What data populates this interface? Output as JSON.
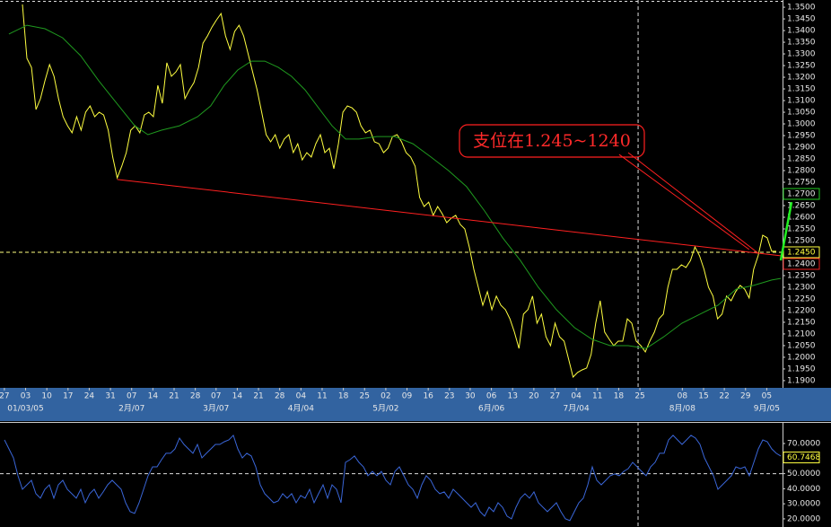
{
  "chart_data": [
    {
      "type": "line",
      "xlim": [
        -4.97,
        168.4
      ],
      "ylim": [
        1.1869,
        1.3531
      ],
      "yticks": [
        {
          "value": 1.35,
          "label": "1.3500"
        },
        {
          "value": 1.345,
          "label": "1.3450"
        },
        {
          "value": 1.34,
          "label": "1.3400"
        },
        {
          "value": 1.335,
          "label": "1.3350"
        },
        {
          "value": 1.33,
          "label": "1.3300"
        },
        {
          "value": 1.325,
          "label": "1.3250"
        },
        {
          "value": 1.32,
          "label": "1.3200"
        },
        {
          "value": 1.315,
          "label": "1.3150"
        },
        {
          "value": 1.31,
          "label": "1.3100"
        },
        {
          "value": 1.305,
          "label": "1.3050"
        },
        {
          "value": 1.3,
          "label": "1.3000"
        },
        {
          "value": 1.295,
          "label": "1.2950"
        },
        {
          "value": 1.29,
          "label": "1.2900"
        },
        {
          "value": 1.285,
          "label": "1.2850"
        },
        {
          "value": 1.28,
          "label": "1.2800"
        },
        {
          "value": 1.275,
          "label": "1.2750"
        },
        {
          "value": 1.265,
          "label": "1.2650"
        },
        {
          "value": 1.26,
          "label": "1.2600"
        },
        {
          "value": 1.255,
          "label": "1.2550"
        },
        {
          "value": 1.25,
          "label": "1.2500"
        },
        {
          "value": 1.235,
          "label": "1.2350"
        },
        {
          "value": 1.23,
          "label": "1.2300"
        },
        {
          "value": 1.225,
          "label": "1.2250"
        },
        {
          "value": 1.22,
          "label": "1.2200"
        },
        {
          "value": 1.215,
          "label": "1.2150"
        },
        {
          "value": 1.21,
          "label": "1.2100"
        },
        {
          "value": 1.205,
          "label": "1.2050"
        },
        {
          "value": 1.2,
          "label": "1.2000"
        },
        {
          "value": 1.195,
          "label": "1.1950"
        },
        {
          "value": 1.19,
          "label": "1.1900"
        }
      ],
      "markers": [
        {
          "value": 1.27,
          "label": "1.2700",
          "color": "#22cc22"
        },
        {
          "value": 1.245,
          "label": "1.2450",
          "color": "#ffff40"
        },
        {
          "value": 1.24,
          "label": "1.2400",
          "color": "#ee2020"
        }
      ],
      "xticks": [
        {
          "value": -4.0,
          "label": "27"
        },
        {
          "value": 0.7,
          "label": "03"
        },
        {
          "value": 5.4,
          "label": "10"
        },
        {
          "value": 10.1,
          "label": "17"
        },
        {
          "value": 14.8,
          "label": "24"
        },
        {
          "value": 19.5,
          "label": "31"
        },
        {
          "value": 24.2,
          "label": "07"
        },
        {
          "value": 28.9,
          "label": "14"
        },
        {
          "value": 33.6,
          "label": "21"
        },
        {
          "value": 38.3,
          "label": "28"
        },
        {
          "value": 42.9,
          "label": "07"
        },
        {
          "value": 47.6,
          "label": "14"
        },
        {
          "value": 52.3,
          "label": "21"
        },
        {
          "value": 57.0,
          "label": "28"
        },
        {
          "value": 61.7,
          "label": "04"
        },
        {
          "value": 66.4,
          "label": "11"
        },
        {
          "value": 71.1,
          "label": "18"
        },
        {
          "value": 75.8,
          "label": "25"
        },
        {
          "value": 80.5,
          "label": "02"
        },
        {
          "value": 85.2,
          "label": "09"
        },
        {
          "value": 89.9,
          "label": "16"
        },
        {
          "value": 94.6,
          "label": "23"
        },
        {
          "value": 99.2,
          "label": "30"
        },
        {
          "value": 103.9,
          "label": "06"
        },
        {
          "value": 108.6,
          "label": "13"
        },
        {
          "value": 113.3,
          "label": "20"
        },
        {
          "value": 118.0,
          "label": "27"
        },
        {
          "value": 122.7,
          "label": "04"
        },
        {
          "value": 127.4,
          "label": "11"
        },
        {
          "value": 132.1,
          "label": "18"
        },
        {
          "value": 136.8,
          "label": "25"
        },
        {
          "value": 146.2,
          "label": "08"
        },
        {
          "value": 150.9,
          "label": "15"
        },
        {
          "value": 155.5,
          "label": "22"
        },
        {
          "value": 160.2,
          "label": "29"
        },
        {
          "value": 164.9,
          "label": "05"
        }
      ],
      "month_labels": [
        {
          "value": 0.7,
          "label": "01/03/05"
        },
        {
          "value": 24.2,
          "label": "2月/07"
        },
        {
          "value": 42.9,
          "label": "3月/07"
        },
        {
          "value": 61.7,
          "label": "4月/04"
        },
        {
          "value": 80.5,
          "label": "5月/02"
        },
        {
          "value": 103.9,
          "label": "6月/06"
        },
        {
          "value": 122.7,
          "label": "7月/04"
        },
        {
          "value": 146.2,
          "label": "8月/08"
        },
        {
          "value": 164.9,
          "label": "9月/05"
        }
      ],
      "hline": 1.245,
      "vline": 136.4,
      "annotation": "支位在1.245~1240",
      "lines": [
        {
          "x": [
            21,
            168
          ],
          "y": [
            1.2762,
            1.2435
          ],
          "color": "#ff2020"
        },
        {
          "x": [
            132.2,
            161.0
          ],
          "y": [
            1.2869,
            1.2462
          ],
          "color": "#ff2020"
        },
        {
          "x": [
            134.2,
            163.0
          ],
          "y": [
            1.2877,
            1.2446
          ],
          "color": "#ff2020"
        },
        {
          "x": [
            168,
            170.4
          ],
          "y": [
            1.2415,
            1.2665
          ],
          "color": "#22ee22"
        }
      ],
      "series": [
        {
          "color": "#ffff40",
          "values": [
            1.3512,
            1.3281,
            1.3242,
            1.3062,
            1.3108,
            1.3185,
            1.3254,
            1.3204,
            1.3108,
            1.3031,
            1.2992,
            1.2962,
            1.3031,
            1.2973,
            1.305,
            1.3077,
            1.3031,
            1.305,
            1.3038,
            1.2973,
            1.2858,
            1.2769,
            1.2819,
            1.2877,
            1.2973,
            1.2992,
            1.2962,
            1.3038,
            1.305,
            1.3031,
            1.3165,
            1.3088,
            1.3262,
            1.3204,
            1.3223,
            1.3254,
            1.3108,
            1.3146,
            1.3177,
            1.3242,
            1.3346,
            1.3377,
            1.3415,
            1.3446,
            1.3473,
            1.3377,
            1.3319,
            1.3396,
            1.3423,
            1.3377,
            1.33,
            1.3223,
            1.3146,
            1.305,
            1.2954,
            1.2923,
            1.2954,
            1.2896,
            1.2935,
            1.2954,
            1.2877,
            1.2915,
            1.2846,
            1.2877,
            1.2858,
            1.2915,
            1.2954,
            1.2877,
            1.2896,
            1.2808,
            1.2915,
            1.305,
            1.3077,
            1.3069,
            1.305,
            1.2992,
            1.2962,
            1.2973,
            1.2923,
            1.2915,
            1.2877,
            1.2896,
            1.2946,
            1.2954,
            1.2923,
            1.2877,
            1.2858,
            1.2819,
            1.2685,
            1.2646,
            1.2665,
            1.2608,
            1.2646,
            1.2615,
            1.2577,
            1.2596,
            1.2608,
            1.2569,
            1.255,
            1.2473,
            1.2377,
            1.23,
            1.2223,
            1.2281,
            1.2204,
            1.2262,
            1.2223,
            1.2204,
            1.2165,
            1.2108,
            1.2038,
            1.2185,
            1.2204,
            1.2262,
            1.2146,
            1.2185,
            1.2088,
            1.205,
            1.2146,
            1.2088,
            1.2069,
            1.1992,
            1.1915,
            1.1935,
            1.1946,
            1.1954,
            1.2012,
            1.2146,
            1.2242,
            1.2108,
            1.2077,
            1.205,
            1.2069,
            1.2069,
            1.2165,
            1.2146,
            1.2069,
            1.205,
            1.2023,
            1.2069,
            1.2108,
            1.2165,
            1.2185,
            1.23,
            1.2377,
            1.2377,
            1.2396,
            1.2385,
            1.2415,
            1.2473,
            1.2435,
            1.2377,
            1.23,
            1.2262,
            1.2165,
            1.2185,
            1.2262,
            1.2242,
            1.2281,
            1.2308,
            1.2292,
            1.2254,
            1.2377,
            1.2435,
            1.2523,
            1.2512,
            1.2454,
            1.2454
          ]
        },
        {
          "color": "#1f9a1f",
          "x": [
            -3.0,
            1.0,
            5.0,
            8.9,
            12.9,
            16.9,
            20.9,
            24.9,
            27.8,
            30.8,
            34.8,
            38.8,
            41.7,
            44.7,
            47.7,
            50.7,
            53.7,
            56.7,
            59.6,
            62.6,
            65.6,
            68.6,
            71.6,
            74.6,
            78.5,
            82.5,
            86.5,
            90.5,
            94.4,
            98.4,
            102.4,
            106.4,
            110.3,
            114.3,
            118.3,
            122.3,
            126.2,
            130.2,
            134.2,
            138.2,
            142.1,
            146.1,
            150.1,
            154.1,
            158.1,
            162.0,
            166.0,
            168.0
          ],
          "values": [
            1.3385,
            1.3423,
            1.3408,
            1.3369,
            1.3292,
            1.3185,
            1.3088,
            1.2992,
            1.2954,
            1.2973,
            1.2992,
            1.3031,
            1.3077,
            1.3165,
            1.3231,
            1.3269,
            1.3269,
            1.3242,
            1.3204,
            1.3146,
            1.3069,
            1.2992,
            1.2935,
            1.2935,
            1.2946,
            1.2946,
            1.2915,
            1.2858,
            1.28,
            1.2731,
            1.2627,
            1.2512,
            1.2415,
            1.23,
            1.2204,
            1.2127,
            1.2077,
            1.205,
            1.205,
            1.2038,
            1.2088,
            1.2146,
            1.2185,
            1.2223,
            1.2292,
            1.2308,
            1.2331,
            1.2338
          ]
        }
      ]
    },
    {
      "type": "line",
      "xlim": [
        -1,
        173.4
      ],
      "ylim": [
        14.6,
        84.3
      ],
      "yticks": [
        {
          "value": 70,
          "label": "70.0000"
        },
        {
          "value": 50,
          "label": "50.0000"
        },
        {
          "value": 40,
          "label": "40.0000"
        },
        {
          "value": 30,
          "label": "30.0000"
        },
        {
          "value": 20,
          "label": "20.0000"
        }
      ],
      "markers": [
        {
          "value": 60.7468,
          "label": "60.7468",
          "color": "#ffff40"
        }
      ],
      "hline": 50,
      "vline": 141.2,
      "series": [
        {
          "color": "#3a66d8",
          "values": [
            72.4,
            66.4,
            60.5,
            48.6,
            39.6,
            42.6,
            45.6,
            36.7,
            33.7,
            39.6,
            42.6,
            33.7,
            42.6,
            45.6,
            39.6,
            36.7,
            33.7,
            39.6,
            30.7,
            36.7,
            39.6,
            33.7,
            37.9,
            42.6,
            45.6,
            42.6,
            39.6,
            30.7,
            24.8,
            23.6,
            30.7,
            39.6,
            48.6,
            54.5,
            54.5,
            59.3,
            63.5,
            63.5,
            66.4,
            73.6,
            69.4,
            66.4,
            63.5,
            69.4,
            60.5,
            63.5,
            66.4,
            69.4,
            69.4,
            71.2,
            72.4,
            75.4,
            66.4,
            60.5,
            63.5,
            61.7,
            54.5,
            42.6,
            36.7,
            33.7,
            30.7,
            31.9,
            36.7,
            33.7,
            36.7,
            30.7,
            35.5,
            33.7,
            39.6,
            30.7,
            36.7,
            42.6,
            33.7,
            42.6,
            39.6,
            30.7,
            57.5,
            59.3,
            61.7,
            57.5,
            54.5,
            48.6,
            51.5,
            48.6,
            51.5,
            45.6,
            42.6,
            51.5,
            54.5,
            48.6,
            42.6,
            39.6,
            33.7,
            42.6,
            48.6,
            45.6,
            39.6,
            36.7,
            37.9,
            33.7,
            39.6,
            36.7,
            33.7,
            30.7,
            27.7,
            30.7,
            24.8,
            21.8,
            27.7,
            24.8,
            30.7,
            27.7,
            21.8,
            20.0,
            27.7,
            33.7,
            36.7,
            33.7,
            37.9,
            30.7,
            27.7,
            24.8,
            27.7,
            30.7,
            24.8,
            20.0,
            18.8,
            24.8,
            30.7,
            33.7,
            42.6,
            54.5,
            45.6,
            42.6,
            45.6,
            48.6,
            49.8,
            48.6,
            51.5,
            53.3,
            57.5,
            54.5,
            51.5,
            48.6,
            54.5,
            57.5,
            63.5,
            63.5,
            72.4,
            75.4,
            72.4,
            69.4,
            72.4,
            75.4,
            73.6,
            69.4,
            60.5,
            54.5,
            48.6,
            39.6,
            42.6,
            45.6,
            48.6,
            54.5,
            53.3,
            54.5,
            48.6,
            57.5,
            66.4,
            72.4,
            71.2,
            66.4,
            63.5,
            61.7
          ]
        }
      ]
    }
  ]
}
